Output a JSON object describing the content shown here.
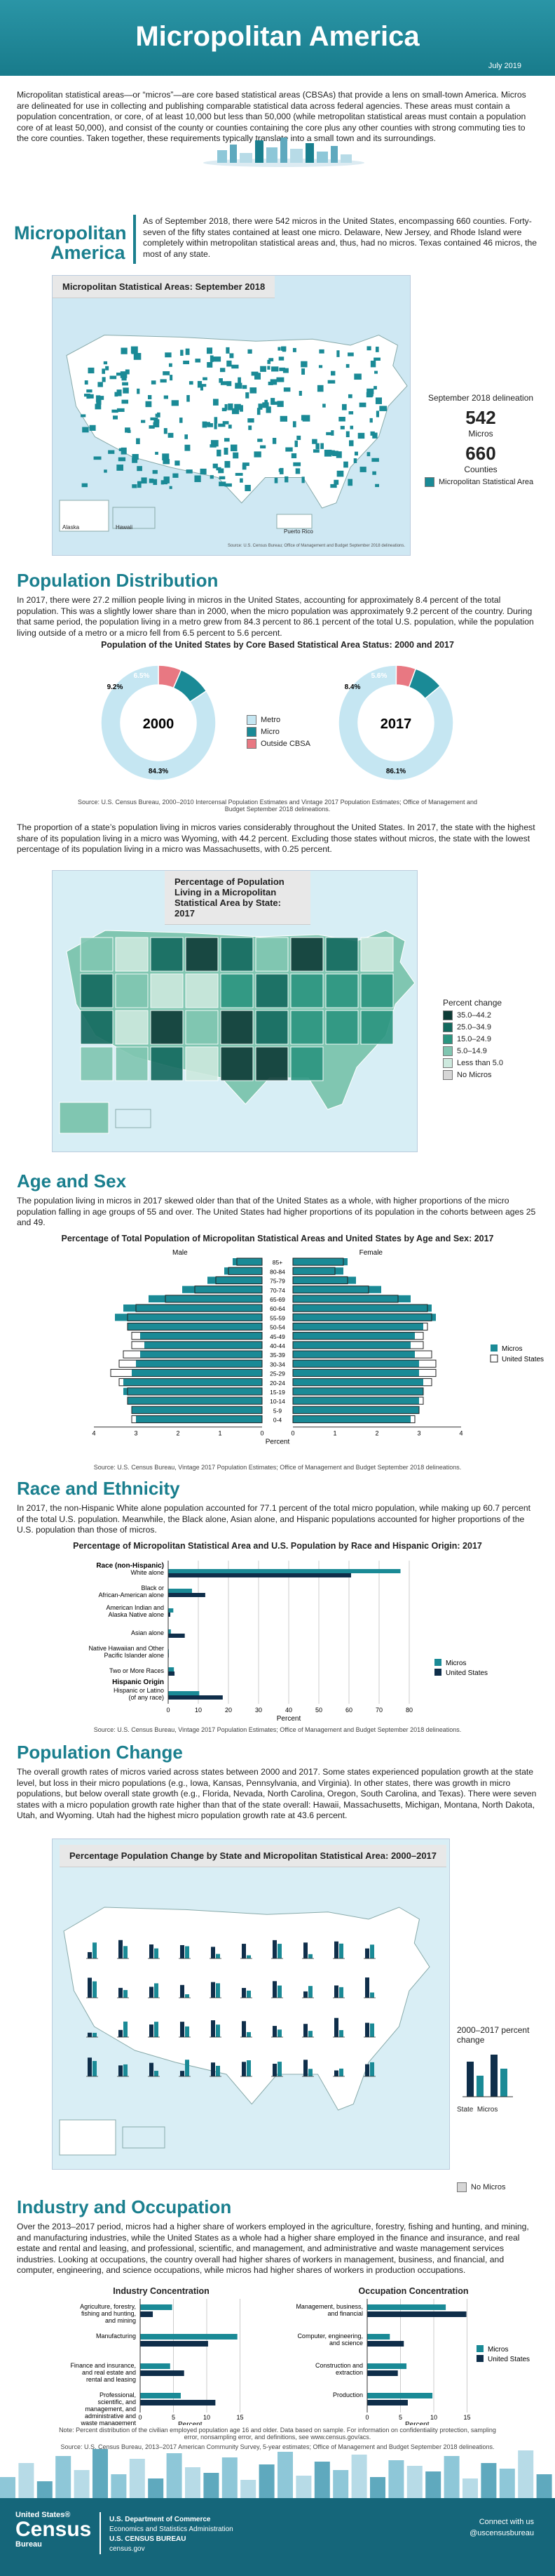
{
  "header": {
    "title": "Micropolitan America",
    "date": "July 2019"
  },
  "intro": "Micropolitan statistical areas—or “micros”—are core based statistical areas (CBSAs) that provide a lens on small-town America. Micros are delineated for use in collecting and publishing comparable statistical data across federal agencies. These areas must contain a population concentration, or core, of at least 10,000 but less than 50,000 (while metropolitan statistical areas must contain a population core of at least 50,000), and consist of the county or counties containing the core plus any other counties with strong commuting ties to the core counties. Taken together, these requirements typically translate into a small town and its surroundings.",
  "micro_section": {
    "title_line1": "Micropolitan",
    "title_line2": "America",
    "text": "As of September 2018, there were 542 micros in the United States, encompassing 660 counties. Forty-seven of the fifty states contained at least one micro. Delaware, New Jersey, and Rhode Island were completely within metropolitan statistical areas and, thus, had no micros. Texas contained 46 micros, the most of any state.",
    "map_title": "Micropolitan Statistical Areas: September 2018",
    "delineation_label": "September 2018 delineation",
    "micros_value": "542",
    "micros_label": "Micros",
    "counties_value": "660",
    "counties_label": "Counties",
    "legend_label": "Micropolitan Statistical Area",
    "alaska": "Alaska",
    "hawaii": "Hawaii",
    "puerto_rico": "Puerto Rico",
    "map_note": "Source: U.S. Census Bureau; Office of Management and Budget September 2018 delineations."
  },
  "population": {
    "title": "Population Distribution",
    "text": "In 2017, there were 27.2 million people living in micros in the United States, accounting for approximately 8.4 percent of the total population. This was a slightly lower share than in 2000, when the micro population was approximately 9.2 percent of the country. During that same period, the population living in a metro grew from 84.3 percent to 86.1 percent of the total U.S. population, while the population living outside of a metro or a micro fell from 6.5 percent to 5.6 percent.",
    "donut_title": "Population of the United States by Core Based Statistical Area Status: 2000 and 2017",
    "donuts": [
      {
        "year": "2000",
        "metro": 84.3,
        "micro": 9.2,
        "outside": 6.5,
        "metro_label": "84.3%",
        "micro_label": "9.2%",
        "outside_label": "6.5%"
      },
      {
        "year": "2017",
        "metro": 86.1,
        "micro": 8.4,
        "outside": 5.6,
        "metro_label": "86.1%",
        "micro_label": "8.4%",
        "outside_label": "5.6%"
      }
    ],
    "legend": [
      "Metro",
      "Micro",
      "Outside CBSA"
    ],
    "colors": {
      "metro": "#c5e6f2",
      "micro": "#1a8a96",
      "outside": "#e87882"
    },
    "source": "Source: U.S. Census Bureau, 2000–2010 Intercensal Population Estimates and Vintage 2017 Population Estimates; Office of Management and Budget September 2018 delineations.",
    "text2": "The proportion of a state’s population living in micros varies considerably throughout the United States. In 2017, the state with the highest share of its population living in a micro was Wyoming, with 44.2 percent. Excluding those states without micros, the state with the lowest percentage of its population living in a micro was Massachusetts, with 0.25 percent.",
    "map2_title": "Percentage of Population Living in a Micropolitan Statistical Area by State: 2017",
    "map2_legend_title": "Percent change",
    "map2_legend": [
      {
        "label": "35.0–44.2",
        "color": "#0d3b36"
      },
      {
        "label": "25.0–34.9",
        "color": "#13695e"
      },
      {
        "label": "15.0–24.9",
        "color": "#2b9580"
      },
      {
        "label": "5.0–14.9",
        "color": "#80c6b1"
      },
      {
        "label": "Less than 5.0",
        "color": "#cde9de"
      },
      {
        "label": "No Micros",
        "color": "#d6d6d6"
      }
    ]
  },
  "age_sex": {
    "title": "Age and Sex",
    "text": "The population living in micros in 2017 skewed older than that of the United States as a whole, with higher proportions of the micro population falling in age groups of 55 and over. The United States had higher proportions of its population in the cohorts between ages 25 and 49.",
    "chart_title": "Percentage of Total Population of Micropolitan Statistical Areas and United States by Age and Sex: 2017",
    "male_label": "Male",
    "female_label": "Female",
    "xlabel": "Percent",
    "legend": [
      "Micros",
      "United States"
    ],
    "source": "Source: U.S. Census Bureau, Vintage 2017 Population Estimates; Office of Management and Budget September 2018 delineations."
  },
  "race": {
    "title": "Race and Ethnicity",
    "text": "In 2017, the non-Hispanic White alone population accounted for 77.1 percent of the total micro population, while making up 60.7 percent of the total U.S. population. Meanwhile, the Black alone, Asian alone, and Hispanic populations accounted for higher proportions of the U.S. population than those of micros.",
    "chart_title": "Percentage of Micropolitan Statistical Area and U.S. Population by Race and Hispanic Origin: 2017",
    "header_race": "Race (non-Hispanic)",
    "header_hisp": "Hispanic Origin",
    "xlabel": "Percent",
    "legend": [
      "Micros",
      "United States"
    ],
    "source": "Source: U.S. Census Bureau, Vintage 2017 Population Estimates; Office of Management and Budget September 2018 delineations."
  },
  "change": {
    "title": "Population Change",
    "text": "The overall growth rates of micros varied across states between 2000 and 2017. Some states experienced population growth at the state level, but loss in their micro populations (e.g., Iowa, Kansas, Pennsylvania, and Virginia). In other states, there was growth in micro populations, but below overall state growth (e.g., Florida, Nevada, North Carolina, Oregon, South Carolina, and Texas). There were seven states with a micro population growth rate higher than that of the state overall: Hawaii, Massachusetts, Michigan, Montana, North Dakota, Utah, and Wyoming. Utah had the highest micro population growth rate at 43.6 percent.",
    "map_title": "Percentage Population Change by State and Micropolitan Statistical Area: 2000–2017",
    "legend_title": "2000–2017 percent change",
    "legend_state": "State",
    "legend_micros": "Micros",
    "no_micros": "No Micros"
  },
  "industry": {
    "title": "Industry and Occupation",
    "text": "Over the 2013–2017 period, micros had a higher share of workers employed in the agriculture, forestry, fishing and hunting, and mining, and manufacturing industries, while the United States as a whole had a higher share employed in the finance and insurance, and real estate and rental and leasing, and professional, scientific, and management, and administrative and waste management services industries. Looking at occupations, the country overall had higher shares of workers in management, business, and financial, and computer, engineering, and science occupations, while micros had higher shares of workers in production occupations.",
    "ind_title": "Industry Concentration",
    "occ_title": "Occupation Concentration",
    "xlabel": "Percent",
    "legend": [
      "Micros",
      "United States"
    ],
    "note": "Note: Percent distribution of the civilian employed population age 16 and older. Data based on sample. For information on confidentiality protection, sampling error, nonsampling error, and definitions, see www.census.gov/acs.",
    "source": "Source: U.S. Census Bureau, 2013–2017 American Community Survey, 5-year estimates; Office of Management and Budget September 2018 delineations."
  },
  "footer": {
    "census_line1": "United States®",
    "census_line2": "Census",
    "census_line3": "Bureau",
    "dept_line1": "U.S. Department of Commerce",
    "dept_line2": "Economics and Statistics Administration",
    "dept_line3": "U.S. CENSUS BUREAU",
    "dept_line4": "census.gov",
    "connect": "Connect with us",
    "handle": "@uscensusbureau"
  },
  "chart_data": [
    {
      "type": "pie",
      "title": "Population of the United States by Core Based Statistical Area Status: 2000 and 2017",
      "series": [
        {
          "name": "2000",
          "categories": [
            "Metro",
            "Micro",
            "Outside CBSA"
          ],
          "values": [
            84.3,
            9.2,
            6.5
          ]
        },
        {
          "name": "2017",
          "categories": [
            "Metro",
            "Micro",
            "Outside CBSA"
          ],
          "values": [
            86.1,
            8.4,
            5.6
          ]
        }
      ]
    },
    {
      "type": "bar",
      "title": "Percentage of Total Population of Micropolitan Statistical Areas and United States by Age and Sex: 2017",
      "categories": [
        "85+",
        "80-84",
        "75-79",
        "70-74",
        "65-69",
        "60-64",
        "55-59",
        "50-54",
        "45-49",
        "40-44",
        "35-39",
        "30-34",
        "25-29",
        "20-24",
        "15-19",
        "10-14",
        "5-9",
        "0-4"
      ],
      "xlabel": "Percent",
      "xlim": [
        -4,
        4
      ],
      "series": [
        {
          "name": "Micros (Male)",
          "values": [
            0.7,
            0.9,
            1.3,
            1.9,
            2.7,
            3.3,
            3.5,
            3.2,
            2.9,
            2.8,
            2.9,
            3.0,
            3.1,
            3.3,
            3.3,
            3.2,
            3.1,
            3.0
          ]
        },
        {
          "name": "United States (Male)",
          "values": [
            0.6,
            0.8,
            1.1,
            1.6,
            2.3,
            3.0,
            3.2,
            3.2,
            3.1,
            3.1,
            3.3,
            3.4,
            3.6,
            3.4,
            3.2,
            3.2,
            3.1,
            3.1
          ]
        },
        {
          "name": "Micros (Female)",
          "values": [
            1.3,
            1.2,
            1.5,
            2.1,
            2.8,
            3.3,
            3.4,
            3.1,
            2.9,
            2.8,
            2.9,
            3.0,
            3.0,
            3.1,
            3.1,
            3.0,
            3.0,
            2.8
          ]
        },
        {
          "name": "United States (Female)",
          "values": [
            1.2,
            1.0,
            1.3,
            1.8,
            2.5,
            3.2,
            3.3,
            3.2,
            3.1,
            3.1,
            3.3,
            3.4,
            3.4,
            3.3,
            3.1,
            3.1,
            3.0,
            2.9
          ]
        }
      ]
    },
    {
      "type": "bar",
      "title": "Percentage of Micropolitan Statistical Area and U.S. Population by Race and Hispanic Origin: 2017",
      "categories": [
        "White alone",
        "Black or African-American alone",
        "American Indian and Alaska Native alone",
        "Asian alone",
        "Native Hawaiian and Other Pacific Islander alone",
        "Two or More Races",
        "Hispanic or Latino (of any race)"
      ],
      "xlabel": "Percent",
      "xlim": [
        0,
        80
      ],
      "series": [
        {
          "name": "Micros",
          "values": [
            77.1,
            7.9,
            1.7,
            0.9,
            0.2,
            1.9,
            10.3
          ]
        },
        {
          "name": "United States",
          "values": [
            60.7,
            12.3,
            0.7,
            5.5,
            0.2,
            2.1,
            18.1
          ]
        }
      ]
    },
    {
      "type": "bar",
      "title": "Industry Concentration",
      "categories": [
        "Agriculture, forestry, fishing and hunting, and mining",
        "Manufacturing",
        "Finance and insurance, and real estate and rental and leasing",
        "Professional, scientific, and management, and administrative and waste management services"
      ],
      "xlabel": "Percent",
      "xlim": [
        0,
        15
      ],
      "series": [
        {
          "name": "Micros",
          "values": [
            4.8,
            14.6,
            4.5,
            6.1
          ]
        },
        {
          "name": "United States",
          "values": [
            1.9,
            10.2,
            6.6,
            11.3
          ]
        }
      ]
    },
    {
      "type": "bar",
      "title": "Occupation Concentration",
      "categories": [
        "Management, business, and financial",
        "Computer, engineering, and science",
        "Construction and extraction",
        "Production"
      ],
      "xlabel": "Percent",
      "xlim": [
        0,
        15
      ],
      "series": [
        {
          "name": "Micros",
          "values": [
            11.8,
            3.4,
            5.9,
            9.8
          ]
        },
        {
          "name": "United States",
          "values": [
            14.9,
            5.5,
            4.6,
            6.1
          ]
        }
      ]
    }
  ]
}
